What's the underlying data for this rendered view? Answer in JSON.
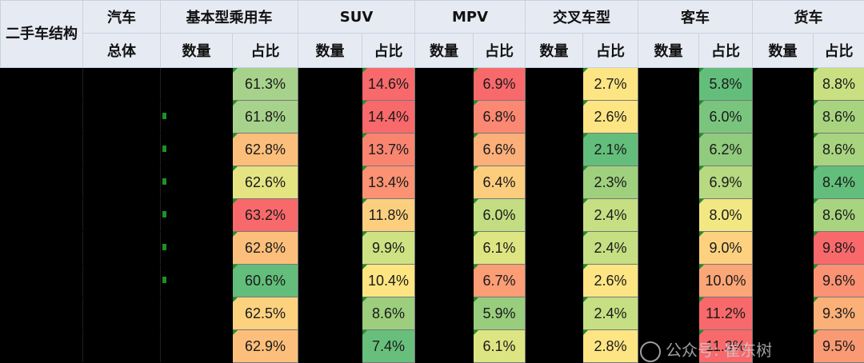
{
  "header": {
    "corner": "二手车结构",
    "groups": [
      "汽车",
      "基本型乘用车",
      "SUV",
      "MPV",
      "交叉车型",
      "客车",
      "货车"
    ],
    "total": "总体",
    "count": "数量",
    "share": "占比"
  },
  "rows": [
    {
      "sedan": "61.3%",
      "suv": "14.6%",
      "mpv": "6.9%",
      "crossover": "2.7%",
      "bus": "5.8%",
      "truck": "8.8%"
    },
    {
      "sedan": "61.8%",
      "suv": "14.4%",
      "mpv": "6.8%",
      "crossover": "2.6%",
      "bus": "6.0%",
      "truck": "8.6%"
    },
    {
      "sedan": "62.8%",
      "suv": "13.7%",
      "mpv": "6.6%",
      "crossover": "2.1%",
      "bus": "6.2%",
      "truck": "8.6%"
    },
    {
      "sedan": "62.6%",
      "suv": "13.4%",
      "mpv": "6.4%",
      "crossover": "2.3%",
      "bus": "6.9%",
      "truck": "8.4%"
    },
    {
      "sedan": "63.2%",
      "suv": "11.8%",
      "mpv": "6.0%",
      "crossover": "2.4%",
      "bus": "8.0%",
      "truck": "8.6%"
    },
    {
      "sedan": "62.8%",
      "suv": "9.9%",
      "mpv": "6.1%",
      "crossover": "2.4%",
      "bus": "9.0%",
      "truck": "9.8%"
    },
    {
      "sedan": "60.6%",
      "suv": "10.4%",
      "mpv": "6.7%",
      "crossover": "2.6%",
      "bus": "10.0%",
      "truck": "9.6%"
    },
    {
      "sedan": "62.5%",
      "suv": "8.6%",
      "mpv": "5.9%",
      "crossover": "2.4%",
      "bus": "11.2%",
      "truck": "9.3%"
    },
    {
      "sedan": "62.9%",
      "suv": "7.4%",
      "mpv": "6.1%",
      "crossover": "2.8%",
      "bus": "11.3%",
      "truck": "9.5%"
    }
  ],
  "colors": {
    "sedan": [
      "#a7d28b",
      "#a7d28b",
      "#fcbf7b",
      "#e4e483",
      "#f8696b",
      "#fcbf7b",
      "#63be7b",
      "#fcd27f",
      "#fcbf7b"
    ],
    "suv": [
      "#f8696b",
      "#f8696b",
      "#f98570",
      "#fa9273",
      "#fccf7f",
      "#cfe283",
      "#fde582",
      "#9cce7e",
      "#67bf7b"
    ],
    "mpv": [
      "#f8696b",
      "#fa8872",
      "#fcaf79",
      "#fdcd7e",
      "#c2dd82",
      "#dde582",
      "#fb9d75",
      "#98cd7e",
      "#dde582"
    ],
    "crossover": [
      "#fde583",
      "#fde583",
      "#63be7b",
      "#9fd07e",
      "#c5df82",
      "#c5df82",
      "#fde583",
      "#c5df82",
      "#fde583"
    ],
    "bus": [
      "#63be7b",
      "#7ac57d",
      "#90cb7e",
      "#b7d981",
      "#f2e883",
      "#fdd17f",
      "#fba676",
      "#f8696b",
      "#f8696b"
    ],
    "truck": [
      "#c9e082",
      "#a8d480",
      "#a8d480",
      "#63be7b",
      "#a8d480",
      "#f8696b",
      "#fa9273",
      "#fbb078",
      "#fa9a74"
    ]
  },
  "marker_rows": [
    1,
    2,
    3,
    4,
    5,
    6
  ],
  "watermark": "公众号: 崔东树"
}
